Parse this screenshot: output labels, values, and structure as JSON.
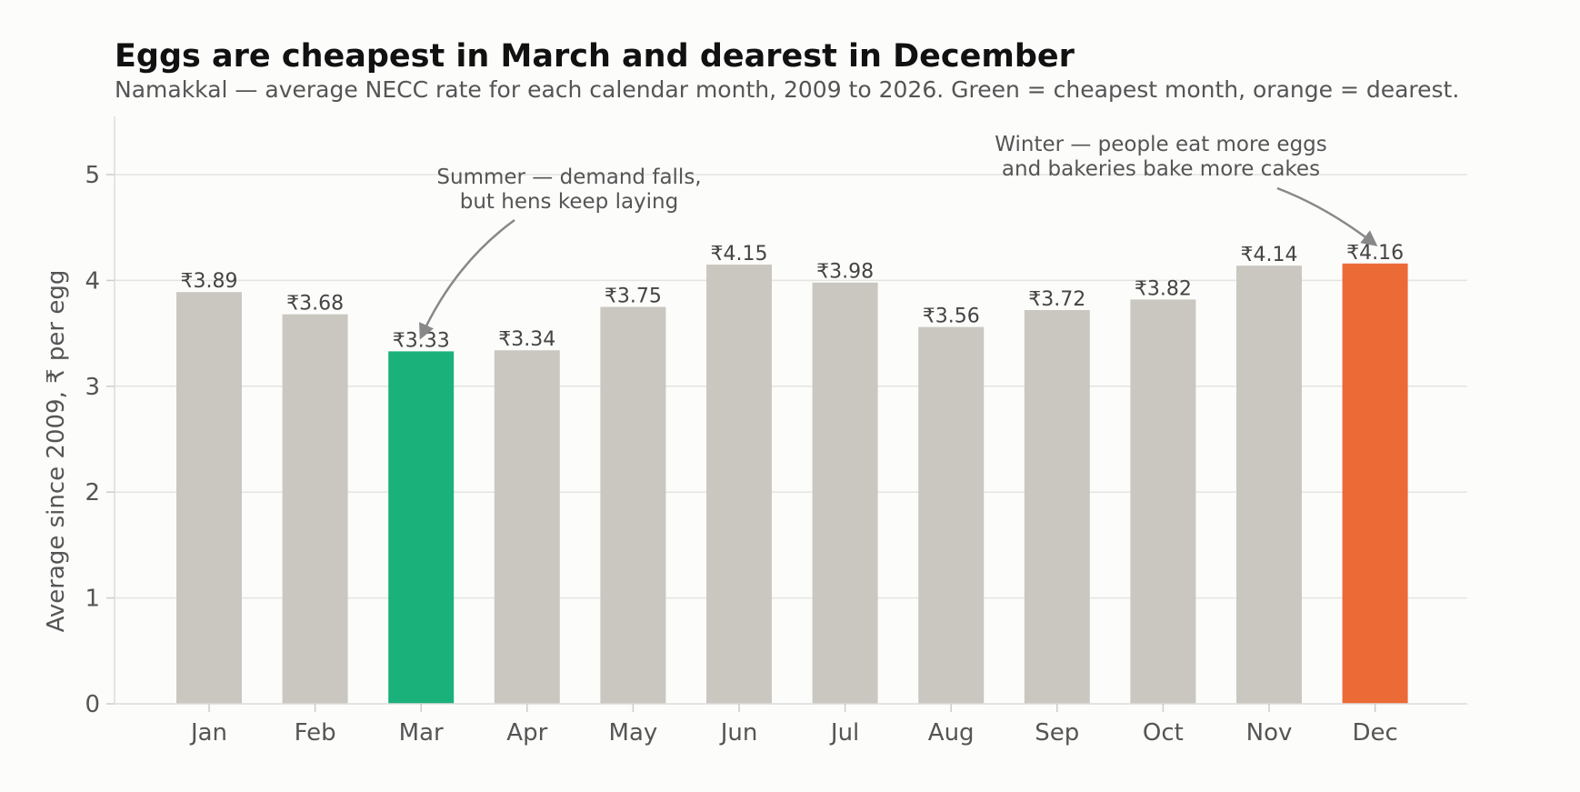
{
  "chart_data": {
    "type": "bar",
    "title": "Eggs are cheapest in March and dearest in December",
    "subtitle": "Namakkal — average NECC rate for each calendar month, 2009 to 2026. Green = cheapest month, orange = dearest.",
    "xlabel": "",
    "ylabel": "Average since 2009, ₹ per egg",
    "ylim": [
      0,
      5.55
    ],
    "yticks": [
      0,
      1,
      2,
      3,
      4,
      5
    ],
    "grid": "horizontal",
    "categories": [
      "Jan",
      "Feb",
      "Mar",
      "Apr",
      "May",
      "Jun",
      "Jul",
      "Aug",
      "Sep",
      "Oct",
      "Nov",
      "Dec"
    ],
    "values": [
      3.89,
      3.68,
      3.33,
      3.34,
      3.75,
      4.15,
      3.98,
      3.56,
      3.72,
      3.82,
      4.14,
      4.16
    ],
    "value_labels": [
      "₹3.89",
      "₹3.68",
      "₹3.33",
      "₹3.34",
      "₹3.75",
      "₹4.15",
      "₹3.98",
      "₹3.56",
      "₹3.72",
      "₹3.82",
      "₹4.14",
      "₹4.16"
    ],
    "colors": {
      "default": "#cac7c0",
      "cheapest": "#1bb17b",
      "dearest": "#eb6a36"
    },
    "highlight": {
      "cheapest": "Mar",
      "dearest": "Dec"
    },
    "annotations": [
      {
        "lines": [
          "Summer — demand falls,",
          "but hens keep laying"
        ],
        "target": "Mar",
        "target_value": 3.33
      },
      {
        "lines": [
          "Winter — people eat more eggs",
          "and bakeries bake more cakes"
        ],
        "target": "Dec",
        "target_value": 4.16
      }
    ]
  }
}
